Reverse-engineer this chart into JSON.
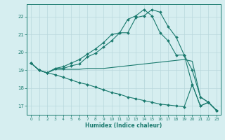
{
  "xlabel": "Humidex (Indice chaleur)",
  "background_color": "#d6eef0",
  "grid_color": "#b8d8dc",
  "line_color": "#1a7a6e",
  "xlim": [
    -0.5,
    23.5
  ],
  "ylim": [
    16.5,
    22.7
  ],
  "yticks": [
    17,
    18,
    19,
    20,
    21,
    22
  ],
  "xticks": [
    0,
    1,
    2,
    3,
    4,
    5,
    6,
    7,
    8,
    9,
    10,
    11,
    12,
    13,
    14,
    15,
    16,
    17,
    18,
    19,
    20,
    21,
    22,
    23
  ],
  "line1_x": [
    0,
    1,
    2,
    3,
    4,
    5,
    6,
    7,
    8,
    9,
    10,
    11,
    12,
    13,
    14,
    15,
    16,
    17,
    18,
    19,
    20,
    21,
    22,
    23
  ],
  "line1_y": [
    19.4,
    19.0,
    18.85,
    19.1,
    19.2,
    19.4,
    19.6,
    19.9,
    20.2,
    20.55,
    21.0,
    21.1,
    21.85,
    22.05,
    22.4,
    22.05,
    21.1,
    20.65,
    19.85,
    19.85,
    19.0,
    17.5,
    17.2,
    16.75
  ],
  "line2_x": [
    0,
    1,
    2,
    3,
    4,
    5,
    6,
    7,
    8,
    9,
    10,
    11,
    12,
    13,
    14,
    15,
    16,
    17,
    18,
    19,
    20,
    21,
    22,
    23
  ],
  "line2_y": [
    19.4,
    19.0,
    18.85,
    19.1,
    19.1,
    19.25,
    19.35,
    19.75,
    19.95,
    20.3,
    20.65,
    21.1,
    21.1,
    21.95,
    22.05,
    22.4,
    22.25,
    21.45,
    20.85,
    19.85,
    18.2,
    17.0,
    17.2,
    16.75
  ],
  "line3_x": [
    0,
    1,
    2,
    3,
    4,
    5,
    6,
    7,
    8,
    9,
    10,
    11,
    12,
    13,
    14,
    15,
    16,
    17,
    18,
    19,
    20,
    21,
    22,
    23
  ],
  "line3_y": [
    19.4,
    19.0,
    18.85,
    19.05,
    19.05,
    19.05,
    19.05,
    19.1,
    19.1,
    19.1,
    19.15,
    19.2,
    19.25,
    19.3,
    19.35,
    19.4,
    19.45,
    19.5,
    19.55,
    19.6,
    19.5,
    17.5,
    17.2,
    16.75
  ],
  "line4_x": [
    0,
    1,
    2,
    3,
    4,
    5,
    6,
    7,
    8,
    9,
    10,
    11,
    12,
    13,
    14,
    15,
    16,
    17,
    18,
    19,
    20,
    21,
    22,
    23
  ],
  "line4_y": [
    19.4,
    19.0,
    18.85,
    18.75,
    18.6,
    18.45,
    18.3,
    18.2,
    18.05,
    17.9,
    17.75,
    17.65,
    17.5,
    17.4,
    17.3,
    17.2,
    17.1,
    17.05,
    17.0,
    16.95,
    18.2,
    17.0,
    17.2,
    16.75
  ]
}
